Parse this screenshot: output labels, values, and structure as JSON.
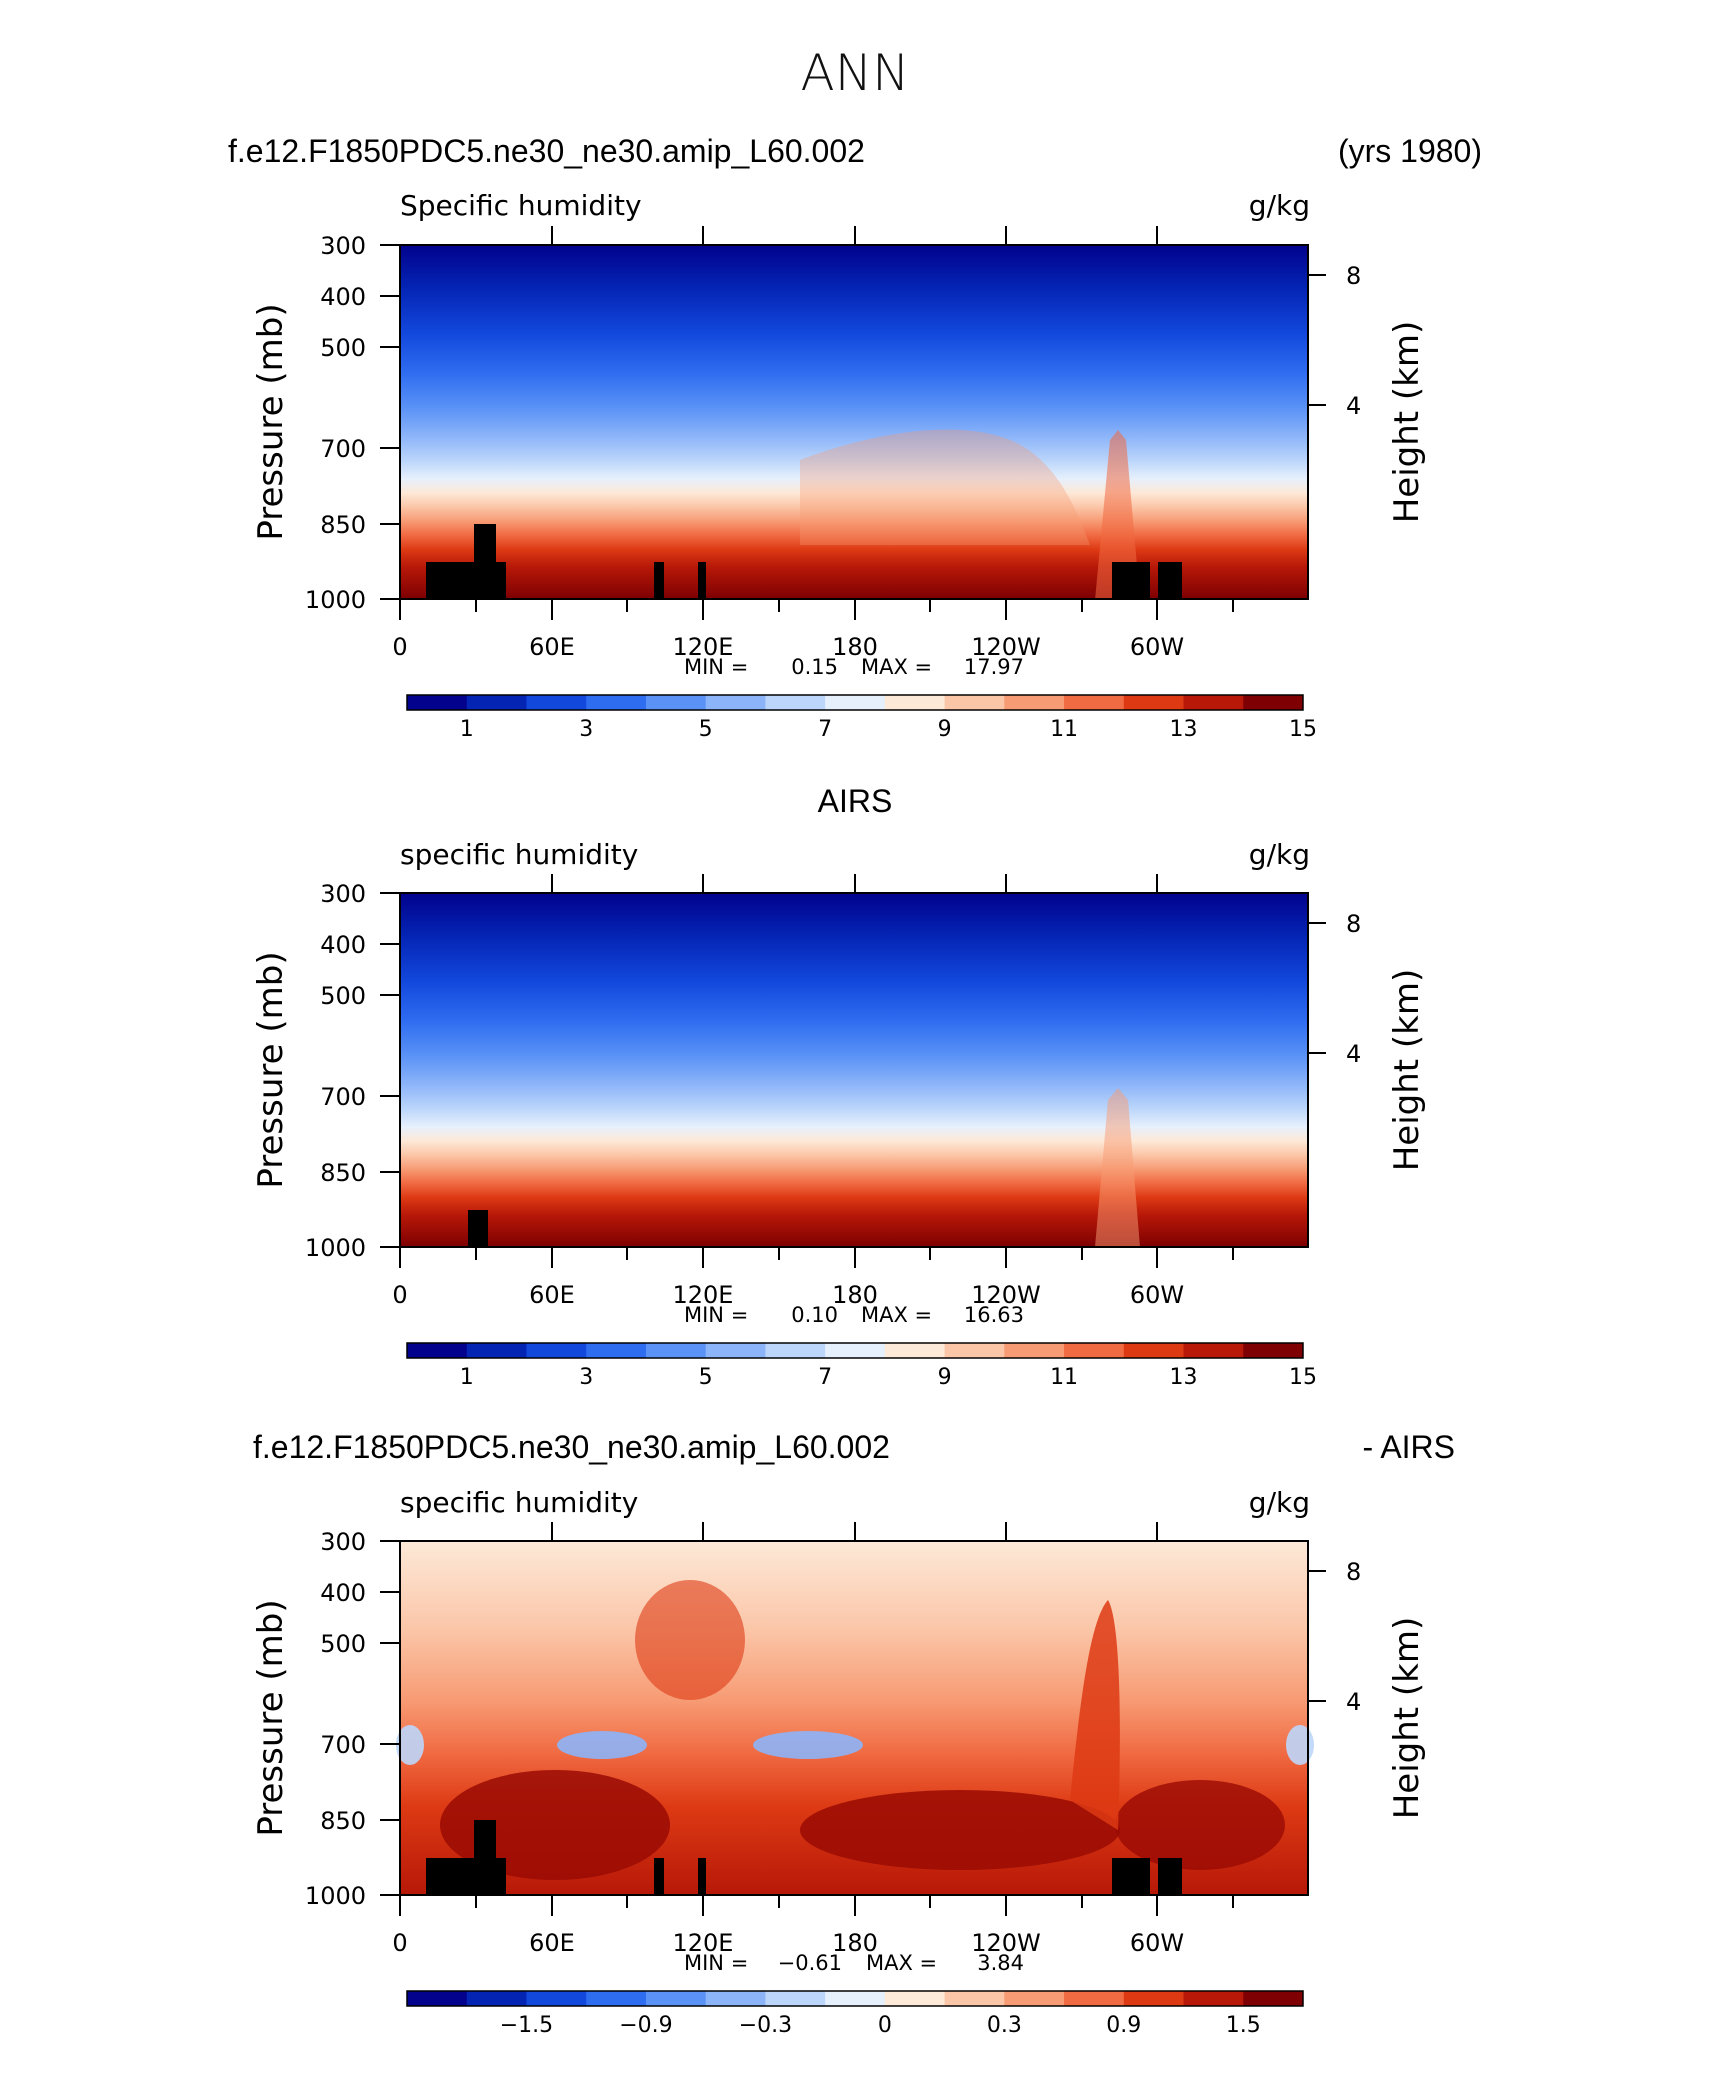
{
  "title": "ANN",
  "axes_common": {
    "pressure_ticks": [
      "300",
      "400",
      "500",
      "700",
      "850",
      "1000"
    ],
    "height_ticks": [
      "8",
      "4"
    ],
    "x_tick_labels": [
      "0",
      "60E",
      "120E",
      "180",
      "120W",
      "60W"
    ],
    "ylabel": "Pressure (mb)",
    "ylabel_right": "Height (km)",
    "min_label": "MIN =",
    "max_label": "MAX ="
  },
  "panels": [
    {
      "header_left": "f.e12.F1850PDC5.ne30_ne30.amip_L60.002",
      "header_right": "(yrs 1980)",
      "variable": "Specific humidity",
      "units": "g/kg",
      "min_value": "0.15",
      "max_value": "17.97",
      "colorbar_labels": [
        "1",
        "3",
        "5",
        "7",
        "9",
        "11",
        "13",
        "15"
      ]
    },
    {
      "header_center": "AIRS",
      "variable": "specific humidity",
      "units": "g/kg",
      "min_value": "0.10",
      "max_value": "16.63",
      "colorbar_labels": [
        "1",
        "3",
        "5",
        "7",
        "9",
        "11",
        "13",
        "15"
      ]
    },
    {
      "header_left": "f.e12.F1850PDC5.ne30_ne30.amip_L60.002",
      "header_right": "- AIRS",
      "variable": "specific humidity",
      "units": "g/kg",
      "min_value": "−0.61",
      "max_value": "3.84",
      "colorbar_labels": [
        "−1.5",
        "−0.9",
        "−0.3",
        "0",
        "0.3",
        "0.9",
        "1.5"
      ]
    }
  ],
  "colorbar_colors": [
    "#02028c",
    "#0424b4",
    "#1248dc",
    "#2e6cf0",
    "#5a92f6",
    "#8cb4f9",
    "#bcd6fb",
    "#e6f0fc",
    "#fde9d8",
    "#fbc6a8",
    "#f79b74",
    "#f06a42",
    "#dd3a14",
    "#b71808",
    "#7e0002"
  ],
  "chart_data": [
    {
      "type": "heatmap",
      "title": "f.e12.F1850PDC5.ne30_ne30.amip_L60.002",
      "subtitle": "Specific humidity (g/kg)",
      "x_ticks": [
        "0",
        "60E",
        "120E",
        "180",
        "120W",
        "60W"
      ],
      "y_ticks_pressure": [
        300,
        400,
        500,
        700,
        850,
        1000
      ],
      "y_ticks_height_km": [
        8,
        4
      ],
      "min": 0.15,
      "max": 17.97,
      "contour_levels": [
        0,
        1,
        2,
        3,
        4,
        5,
        6,
        7,
        8,
        9,
        10,
        11,
        12,
        13,
        14,
        15
      ]
    },
    {
      "type": "heatmap",
      "title": "AIRS",
      "subtitle": "specific humidity (g/kg)",
      "x_ticks": [
        "0",
        "60E",
        "120E",
        "180",
        "120W",
        "60W"
      ],
      "y_ticks_pressure": [
        300,
        400,
        500,
        700,
        850,
        1000
      ],
      "y_ticks_height_km": [
        8,
        4
      ],
      "min": 0.1,
      "max": 16.63,
      "contour_levels": [
        0,
        1,
        2,
        3,
        4,
        5,
        6,
        7,
        8,
        9,
        10,
        11,
        12,
        13,
        14,
        15
      ]
    },
    {
      "type": "heatmap",
      "title": "f.e12.F1850PDC5.ne30_ne30.amip_L60.002 - AIRS",
      "subtitle": "specific humidity (g/kg)",
      "x_ticks": [
        "0",
        "60E",
        "120E",
        "180",
        "120W",
        "60W"
      ],
      "y_ticks_pressure": [
        300,
        400,
        500,
        700,
        850,
        1000
      ],
      "y_ticks_height_km": [
        8,
        4
      ],
      "min": -0.61,
      "max": 3.84,
      "contour_levels": [
        -2.1,
        -1.8,
        -1.5,
        -1.2,
        -0.9,
        -0.6,
        -0.3,
        0,
        0.3,
        0.6,
        0.9,
        1.2,
        1.5,
        1.8,
        2.1
      ]
    }
  ]
}
